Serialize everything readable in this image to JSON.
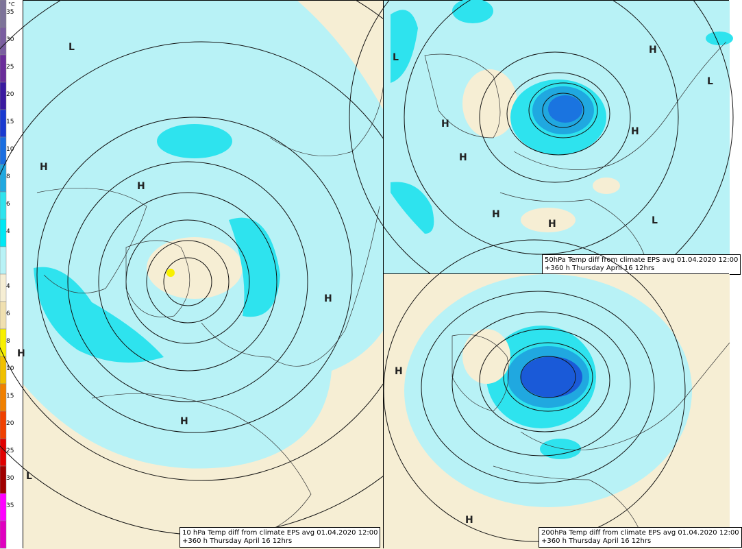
{
  "legend": {
    "unit": "°C",
    "labels": [
      "35",
      "30",
      "25",
      "20",
      "15",
      "10",
      "8",
      "6",
      "4",
      "4",
      "6",
      "8",
      "10",
      "15",
      "20",
      "25",
      "30",
      "35"
    ]
  },
  "panels": [
    {
      "caption": "10 hPa Temp diff from climate EPS avg 01.04.2020 12:00",
      "subcaption": "+360 h Thursday April 16 12hrs",
      "markers": [
        "L",
        "H",
        "H",
        "H",
        "H",
        "H",
        "L"
      ]
    },
    {
      "caption": "50hPa Temp diff from climate EPS avg 01.04.2020 12:00",
      "subcaption": "+360 h Thursday April 16 12hrs",
      "markers": [
        "L",
        "H",
        "H",
        "H",
        "H",
        "H",
        "H",
        "L",
        "L"
      ]
    },
    {
      "caption": "200hPa Temp diff from climate EPS avg 01.04.2020 12:00",
      "subcaption": "+360 h Thursday April 16 12hrs",
      "markers": [
        "H",
        "H"
      ]
    }
  ]
}
